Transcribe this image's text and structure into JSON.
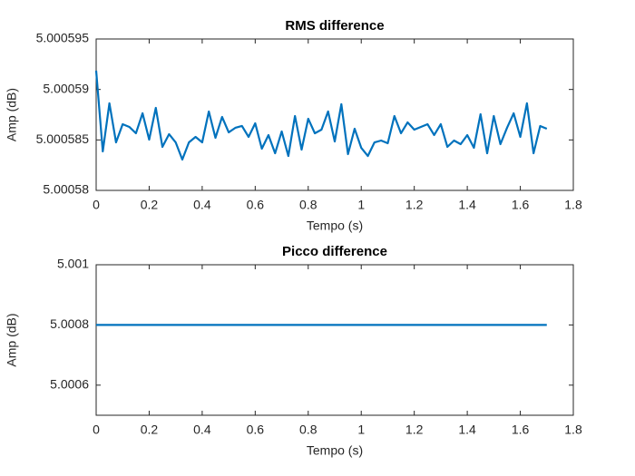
{
  "chart_data": [
    {
      "type": "line",
      "title": "RMS difference",
      "x_label": "Tempo (s)",
      "y_label": "Amp (dB)",
      "x": [
        0,
        0.025,
        0.05,
        0.075,
        0.1,
        0.125,
        0.15,
        0.175,
        0.2,
        0.225,
        0.25,
        0.275,
        0.3,
        0.325,
        0.35,
        0.375,
        0.4,
        0.425,
        0.45,
        0.475,
        0.5,
        0.525,
        0.55,
        0.575,
        0.6,
        0.625,
        0.65,
        0.675,
        0.7,
        0.725,
        0.75,
        0.775,
        0.8,
        0.825,
        0.85,
        0.875,
        0.9,
        0.925,
        0.95,
        0.975,
        1,
        1.025,
        1.05,
        1.075,
        1.1,
        1.125,
        1.15,
        1.175,
        1.2,
        1.225,
        1.25,
        1.275,
        1.3,
        1.325,
        1.35,
        1.375,
        1.4,
        1.425,
        1.45,
        1.475,
        1.5,
        1.525,
        1.55,
        1.575,
        1.6,
        1.625,
        1.65,
        1.675,
        1.7
      ],
      "series": [
        {
          "color": "#0072BD",
          "values": [
            5.00059186,
            5.00058386,
            5.00058863,
            5.00058476,
            5.00058656,
            5.00058629,
            5.00058566,
            5.00058764,
            5.00058503,
            5.00058818,
            5.00058431,
            5.00058557,
            5.00058476,
            5.00058305,
            5.00058476,
            5.0005853,
            5.00058476,
            5.00058782,
            5.00058521,
            5.00058728,
            5.00058575,
            5.0005862,
            5.00058638,
            5.0005853,
            5.00058665,
            5.00058413,
            5.00058548,
            5.00058368,
            5.00058584,
            5.00058341,
            5.00058737,
            5.00058404,
            5.0005871,
            5.00058566,
            5.00058602,
            5.00058782,
            5.00058485,
            5.00058854,
            5.00058359,
            5.00058611,
            5.00058422,
            5.00058341,
            5.00058476,
            5.00058494,
            5.00058467,
            5.00058737,
            5.00058566,
            5.00058674,
            5.00058602,
            5.00058629,
            5.00058656,
            5.00058548,
            5.00058656,
            5.00058431,
            5.00058494,
            5.00058458,
            5.00058548,
            5.00058422,
            5.00058755,
            5.00058368,
            5.00058737,
            5.00058458,
            5.0005862,
            5.00058764,
            5.0005853,
            5.00058863,
            5.00058368,
            5.00058638,
            5.00058611
          ]
        }
      ],
      "xlim": [
        0,
        1.8
      ],
      "xticks": [
        0,
        0.2,
        0.4,
        0.6,
        0.8,
        1,
        1.2,
        1.4,
        1.6,
        1.8
      ],
      "ylim": [
        5.00058,
        5.000595
      ],
      "yticks": [
        5.00058,
        5.000585,
        5.00059,
        5.000595
      ],
      "grid": false
    },
    {
      "type": "line",
      "title": "Picco difference",
      "x_label": "Tempo (s)",
      "y_label": "Amp (dB)",
      "x": [
        0,
        1.7
      ],
      "series": [
        {
          "color": "#0072BD",
          "values": [
            5.0008,
            5.0008
          ]
        }
      ],
      "xlim": [
        0,
        1.8
      ],
      "xticks": [
        0,
        0.2,
        0.4,
        0.6,
        0.8,
        1,
        1.2,
        1.4,
        1.6,
        1.8
      ],
      "ylim": [
        5.0005,
        5.001
      ],
      "yticks": [
        5.0006,
        5.0008,
        5.001
      ],
      "grid": false
    }
  ]
}
